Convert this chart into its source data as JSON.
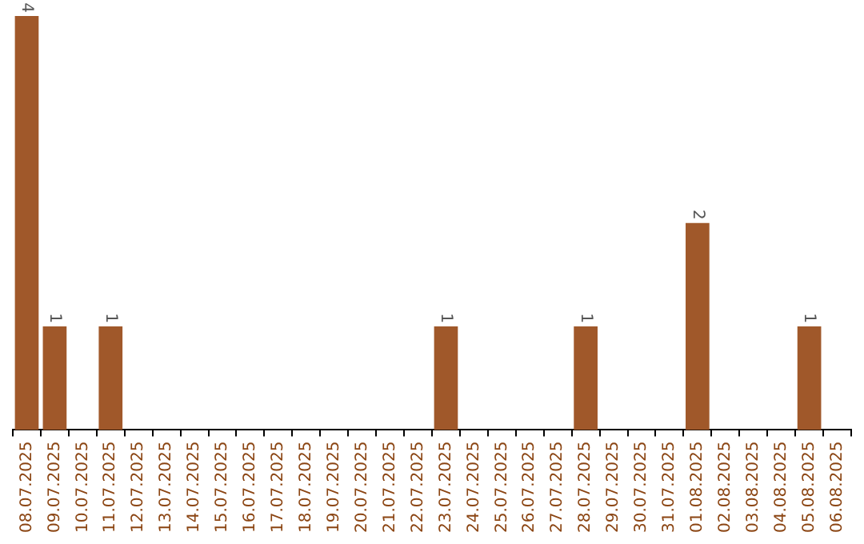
{
  "chart_data": {
    "type": "bar",
    "categories": [
      "08.07.2025",
      "09.07.2025",
      "10.07.2025",
      "11.07.2025",
      "12.07.2025",
      "13.07.2025",
      "14.07.2025",
      "15.07.2025",
      "16.07.2025",
      "17.07.2025",
      "18.07.2025",
      "19.07.2025",
      "20.07.2025",
      "21.07.2025",
      "22.07.2025",
      "23.07.2025",
      "24.07.2025",
      "25.07.2025",
      "26.07.2025",
      "27.07.2025",
      "28.07.2025",
      "29.07.2025",
      "30.07.2025",
      "31.07.2025",
      "01.08.2025",
      "02.08.2025",
      "03.08.2025",
      "04.08.2025",
      "05.08.2025",
      "06.08.2025"
    ],
    "values": [
      4,
      1,
      0,
      1,
      0,
      0,
      0,
      0,
      0,
      0,
      0,
      0,
      0,
      0,
      0,
      1,
      0,
      0,
      0,
      0,
      1,
      0,
      0,
      0,
      2,
      0,
      0,
      0,
      1,
      0
    ],
    "value_labels": [
      "4",
      "1",
      null,
      "1",
      null,
      null,
      null,
      null,
      null,
      null,
      null,
      null,
      null,
      null,
      null,
      "1",
      null,
      null,
      null,
      null,
      "1",
      null,
      null,
      null,
      "2",
      null,
      null,
      null,
      "1",
      null
    ],
    "color": "#a0582a"
  }
}
